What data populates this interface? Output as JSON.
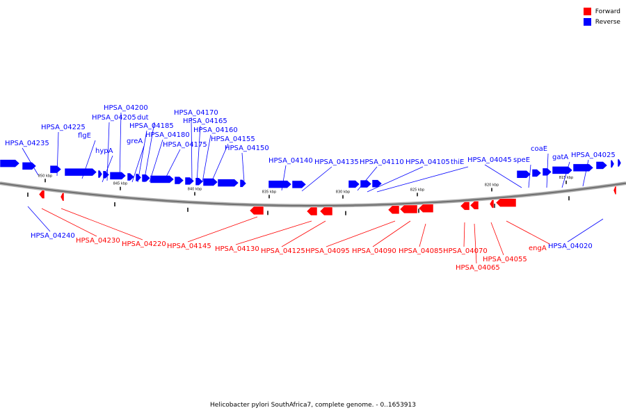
{
  "legend": {
    "forward_label": "Forward",
    "reverse_label": "Reverse",
    "forward_color": "#ff0000",
    "reverse_color": "#0000ff"
  },
  "caption": "Helicobacter pylori SouthAfrica7, complete genome. - 0..1653913",
  "ticks": [
    "850 kbp",
    "845 kbp",
    "840 kbp",
    "835 kbp",
    "830 kbp",
    "825 kbp",
    "820 kbp",
    "815 kbp"
  ],
  "reverse_genes": [
    "HPSA_04235",
    "HPSA_04225",
    "flgE",
    "hypA",
    "HPSA_04205",
    "HPSA_04200",
    "greA",
    "HPSA_04185",
    "dut",
    "HPSA_04180",
    "HPSA_04175",
    "HPSA_04170",
    "HPSA_04165",
    "HPSA_04160",
    "HPSA_04155",
    "HPSA_04150",
    "HPSA_04140",
    "HPSA_04135",
    "HPSA_04110",
    "HPSA_04105",
    "thiE",
    "HPSA_04045",
    "speE",
    "coaE",
    "gatA",
    "HPSA_04025",
    "HPSA_04240",
    "HPSA_04020"
  ],
  "forward_genes": [
    "HPSA_04230",
    "HPSA_04220",
    "HPSA_04145",
    "HPSA_04130",
    "HPSA_04125",
    "HPSA_04095",
    "HPSA_04090",
    "HPSA_04085",
    "HPSA_04070",
    "HPSA_04065",
    "HPSA_04055",
    "engA"
  ]
}
